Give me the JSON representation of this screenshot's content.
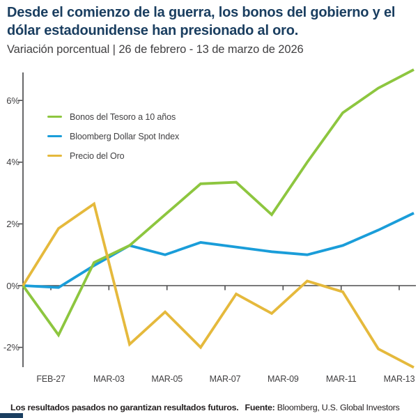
{
  "header": {
    "title": "Desde el comienzo de la guerra, los bonos del gobierno y el dólar estadounidense han presionado al oro.",
    "subtitle": "Variación porcentual | 26 de febrero - 13 de marzo de 2026"
  },
  "chart_data": {
    "type": "line",
    "title": "Desde el comienzo de la guerra, los bonos del gobierno y el dólar estadounidense han presionado al oro.",
    "subtitle_unit": "Variación porcentual",
    "date_range": "26 de febrero - 13 de marzo de 2026",
    "x_axis_labels": [
      "FEB-27",
      "MAR-03",
      "MAR-05",
      "MAR-07",
      "MAR-09",
      "MAR-11",
      "MAR-13"
    ],
    "y_tick_labels": [
      "6%",
      "4%",
      "2%",
      "0%",
      "-2%"
    ],
    "y_tick_values": [
      6,
      4,
      2,
      0,
      -2
    ],
    "ylim": [
      -3.0,
      7.2
    ],
    "n_points": 12,
    "grid": "off",
    "legend_position": "upper-left-inside",
    "series": [
      {
        "name": "Bonos del Tesoro a 10 años",
        "color": "#8dc63f",
        "values": [
          0,
          -1.6,
          0.75,
          1.3,
          2.3,
          3.3,
          3.35,
          2.3,
          4.0,
          5.6,
          6.4,
          7.0
        ]
      },
      {
        "name": "Bloomberg Dollar Spot Index",
        "color": "#1a9dd9",
        "values": [
          0,
          -0.06,
          0.65,
          1.3,
          1.0,
          1.4,
          1.25,
          1.1,
          1.0,
          1.3,
          1.8,
          2.35
        ]
      },
      {
        "name": "Precio del Oro",
        "color": "#e5b93c",
        "values": [
          0,
          1.85,
          2.65,
          -1.9,
          -0.85,
          -2.0,
          -0.27,
          -0.9,
          0.15,
          -0.2,
          -2.05,
          -2.65
        ]
      }
    ],
    "axis_color": "#4d4d4f"
  },
  "footer": {
    "disclaimer": "Los resultados pasados no garantizan resultados futuros.",
    "source_label": "Fuente:",
    "source": "Bloomberg, U.S. Global Investors"
  }
}
